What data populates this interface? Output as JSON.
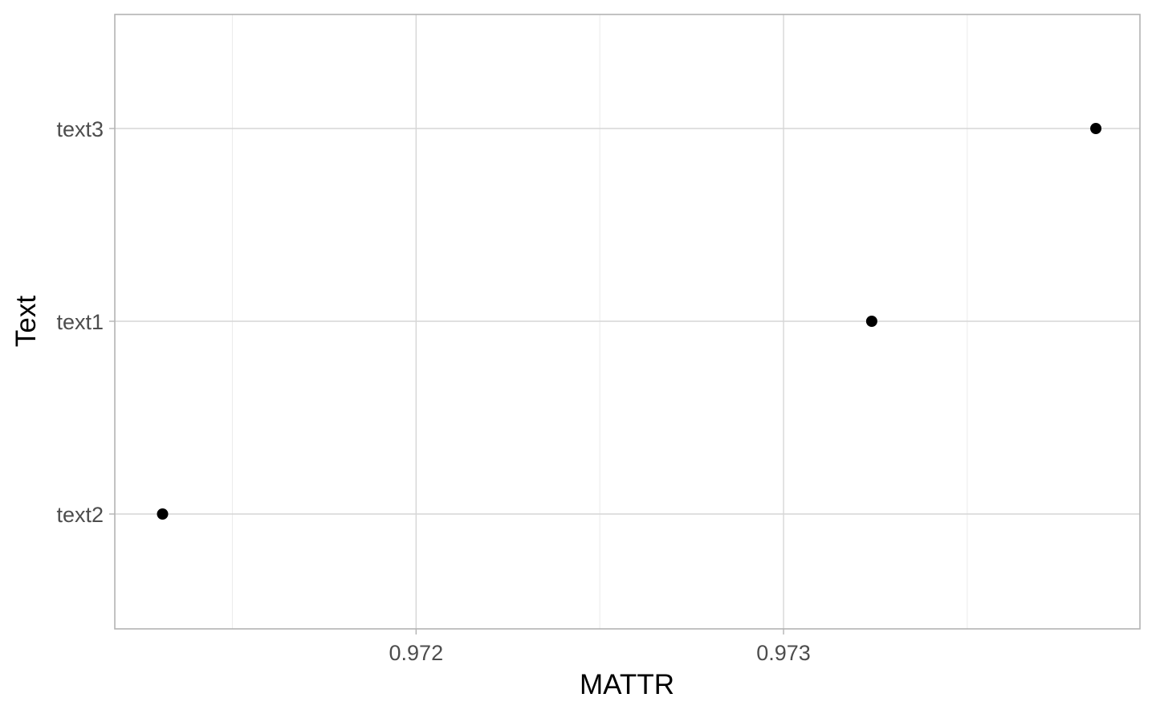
{
  "chart_data": {
    "type": "scatter",
    "title": "",
    "xlabel": "MATTR",
    "ylabel": "Text",
    "categories": [
      "text2",
      "text1",
      "text3"
    ],
    "points": [
      {
        "y": "text3",
        "x": 0.97385
      },
      {
        "y": "text1",
        "x": 0.97324
      },
      {
        "y": "text2",
        "x": 0.97131
      }
    ],
    "x_ticks": [
      0.972,
      0.973
    ],
    "x_tick_labels": [
      "0.972",
      "0.973"
    ],
    "xlim": [
      0.97118,
      0.97397
    ],
    "grid": true,
    "legend": "none",
    "point_color": "#000000"
  }
}
